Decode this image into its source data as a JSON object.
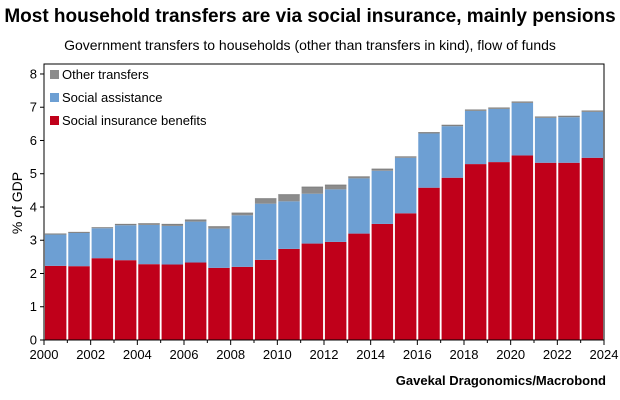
{
  "chart_data": {
    "type": "bar",
    "stacked": true,
    "title": "Most household transfers are via social insurance, mainly pensions",
    "subtitle": "Government transfers to households (other than transfers in kind), flow of funds",
    "source": "Gavekal Dragonomics/Macrobond",
    "ylabel": "% of GDP",
    "xlabel": "",
    "ylim": [
      0,
      8.3
    ],
    "yticks": [
      0,
      1,
      2,
      3,
      4,
      5,
      6,
      7,
      8
    ],
    "xlim": [
      2000,
      2024
    ],
    "xticks": [
      2000,
      2002,
      2004,
      2006,
      2008,
      2010,
      2012,
      2014,
      2016,
      2018,
      2020,
      2022,
      2024
    ],
    "legend_position": "top-left",
    "categories": [
      2000,
      2001,
      2002,
      2003,
      2004,
      2005,
      2006,
      2007,
      2008,
      2009,
      2010,
      2011,
      2012,
      2013,
      2014,
      2015,
      2016,
      2017,
      2018,
      2019,
      2020,
      2021,
      2022,
      2023
    ],
    "series": [
      {
        "name": "Social insurance benefits",
        "color": "#c0001a",
        "values": [
          2.23,
          2.22,
          2.46,
          2.4,
          2.28,
          2.27,
          2.33,
          2.17,
          2.2,
          2.41,
          2.74,
          2.9,
          2.95,
          3.2,
          3.49,
          3.81,
          4.58,
          4.88,
          5.29,
          5.35,
          5.55,
          5.33,
          5.33,
          5.48
        ]
      },
      {
        "name": "Social assistance",
        "color": "#6d9fd3",
        "values": [
          0.94,
          1.0,
          0.9,
          1.05,
          1.18,
          1.16,
          1.23,
          1.18,
          1.55,
          1.69,
          1.43,
          1.5,
          1.58,
          1.66,
          1.6,
          1.67,
          1.63,
          1.55,
          1.6,
          1.6,
          1.58,
          1.35,
          1.37,
          1.38
        ]
      },
      {
        "name": "Other transfers",
        "color": "#8c8c8c",
        "values": [
          0.02,
          0.02,
          0.02,
          0.03,
          0.04,
          0.05,
          0.05,
          0.06,
          0.07,
          0.15,
          0.2,
          0.2,
          0.13,
          0.05,
          0.05,
          0.03,
          0.03,
          0.03,
          0.03,
          0.03,
          0.03,
          0.03,
          0.03,
          0.03
        ]
      }
    ]
  }
}
